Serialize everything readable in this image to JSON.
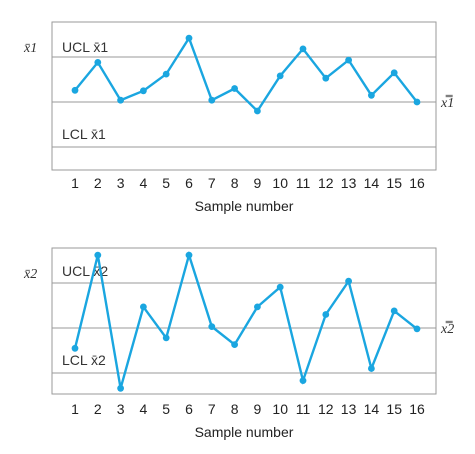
{
  "chart_data": [
    {
      "type": "line",
      "ylabel": "x̄1",
      "ucl_label": "UCL x̄1",
      "lcl_label": "LCL x̄1",
      "center_label": "x̿1",
      "xlabel": "Sample number",
      "x": [
        1,
        2,
        3,
        4,
        5,
        6,
        7,
        8,
        9,
        10,
        11,
        12,
        13,
        14,
        15,
        16
      ],
      "values": [
        0.26,
        0.88,
        0.04,
        0.25,
        0.62,
        1.42,
        0.04,
        0.3,
        -0.2,
        0.58,
        1.18,
        0.53,
        0.93,
        0.15,
        0.65,
        0.0
      ],
      "grid": true
    },
    {
      "type": "line",
      "ylabel": "x̄2",
      "ucl_label": "UCL x̄2",
      "lcl_label": "LCL x̄2",
      "center_label": "x̿2",
      "xlabel": "Sample number",
      "x": [
        1,
        2,
        3,
        4,
        5,
        6,
        7,
        8,
        9,
        10,
        11,
        12,
        13,
        14,
        15,
        16
      ],
      "values": [
        -0.45,
        1.62,
        -1.34,
        0.47,
        -0.22,
        1.62,
        0.03,
        -0.37,
        0.47,
        0.91,
        -1.17,
        0.3,
        1.04,
        -0.9,
        0.38,
        -0.02
      ],
      "grid": true
    }
  ]
}
